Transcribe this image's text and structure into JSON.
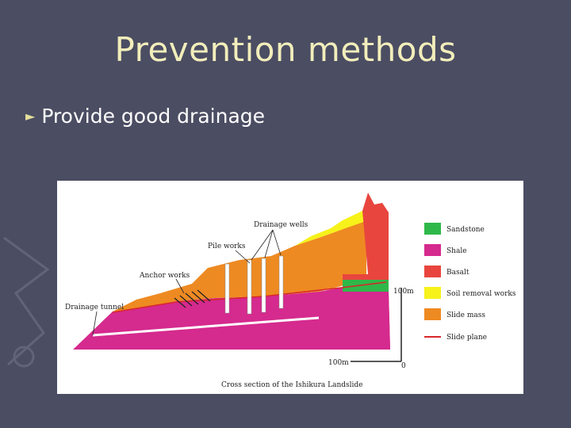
{
  "slide": {
    "title": "Prevention methods",
    "bullet": "Provide good drainage"
  },
  "diagram": {
    "caption": "Cross section of the Ishikura Landslide",
    "labels": {
      "drainage_wells": "Drainage wells",
      "pile_works": "Pile works",
      "anchor_works": "Anchor works",
      "drainage_tunnel": "Drainage tunnel"
    },
    "scale": {
      "vertical": "100m",
      "horizontal": "100m",
      "zero": "0"
    },
    "legend": [
      {
        "label": "Sandstone",
        "color": "#2fb84a"
      },
      {
        "label": "Shale",
        "color": "#d52a8e"
      },
      {
        "label": "Basalt",
        "color": "#e8453e"
      },
      {
        "label": "Soil removal works",
        "color": "#f6f21a"
      },
      {
        "label": "Slide mass",
        "color": "#ee8a22"
      },
      {
        "label": "Slide plane",
        "color": "#d8262a"
      }
    ]
  }
}
